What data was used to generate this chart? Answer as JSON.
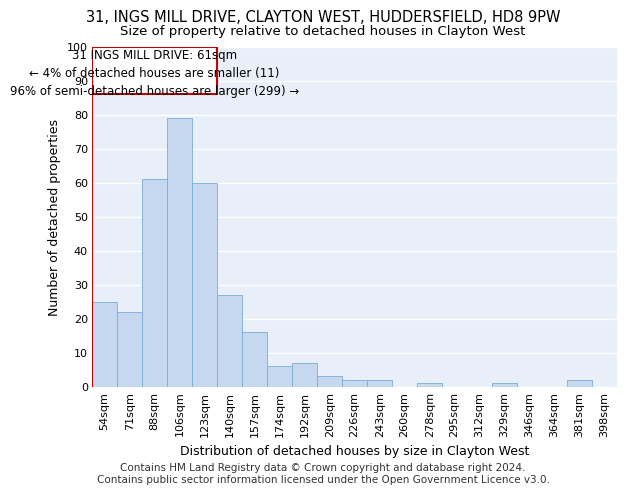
{
  "title_line1": "31, INGS MILL DRIVE, CLAYTON WEST, HUDDERSFIELD, HD8 9PW",
  "title_line2": "Size of property relative to detached houses in Clayton West",
  "xlabel": "Distribution of detached houses by size in Clayton West",
  "ylabel": "Number of detached properties",
  "categories": [
    "54sqm",
    "71sqm",
    "88sqm",
    "106sqm",
    "123sqm",
    "140sqm",
    "157sqm",
    "174sqm",
    "192sqm",
    "209sqm",
    "226sqm",
    "243sqm",
    "260sqm",
    "278sqm",
    "295sqm",
    "312sqm",
    "329sqm",
    "346sqm",
    "364sqm",
    "381sqm",
    "398sqm"
  ],
  "values": [
    25,
    22,
    61,
    79,
    60,
    27,
    16,
    6,
    7,
    3,
    2,
    2,
    0,
    1,
    0,
    0,
    1,
    0,
    0,
    2,
    0
  ],
  "bar_color": "#c5d8f0",
  "bar_edge_color": "#7aadd4",
  "annotation_box_color": "#cc0000",
  "annotation_line1": "31 INGS MILL DRIVE: 61sqm",
  "annotation_line2": "← 4% of detached houses are smaller (11)",
  "annotation_line3": "96% of semi-detached houses are larger (299) →",
  "ylim": [
    0,
    100
  ],
  "yticks": [
    0,
    10,
    20,
    30,
    40,
    50,
    60,
    70,
    80,
    90,
    100
  ],
  "footer_line1": "Contains HM Land Registry data © Crown copyright and database right 2024.",
  "footer_line2": "Contains public sector information licensed under the Open Government Licence v3.0.",
  "plot_bg_color": "#e8eff8",
  "grid_color": "#ffffff",
  "title_fontsize": 10.5,
  "subtitle_fontsize": 9.5,
  "tick_fontsize": 8,
  "ylabel_fontsize": 9,
  "xlabel_fontsize": 9,
  "footer_fontsize": 7.5,
  "annotation_fontsize": 8.5
}
